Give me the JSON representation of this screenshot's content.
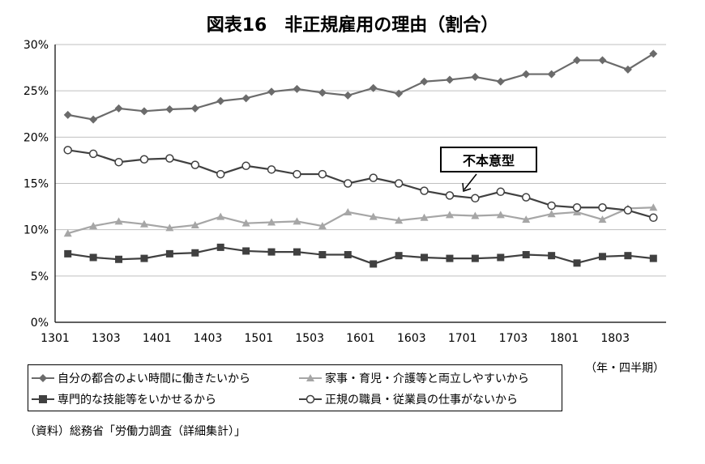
{
  "chart_data": {
    "type": "line",
    "title": "図表16　非正規雇用の理由（割合）",
    "x_labels": [
      "1301",
      "",
      "1303",
      "",
      "1401",
      "",
      "1403",
      "",
      "1501",
      "",
      "1503",
      "",
      "1601",
      "",
      "1603",
      "",
      "1701",
      "",
      "1703",
      "",
      "1801",
      "",
      "1803",
      ""
    ],
    "x_tick_labels": [
      "1301",
      "1303",
      "1401",
      "1403",
      "1501",
      "1503",
      "1601",
      "1603",
      "1701",
      "1703",
      "1801",
      "1803"
    ],
    "unit_note": "（年・四半期）",
    "ylim": [
      0,
      30
    ],
    "y_ticks": [
      "0%",
      "5%",
      "10%",
      "15%",
      "20%",
      "25%",
      "30%"
    ],
    "grid": true,
    "series": [
      {
        "name": "自分の都合のよい時間に働きたいから",
        "color": "#6b6b6b",
        "marker": "diamond",
        "values": [
          22.4,
          21.9,
          23.1,
          22.8,
          23.0,
          23.1,
          23.9,
          24.2,
          24.9,
          25.2,
          24.8,
          24.5,
          25.3,
          24.7,
          26.0,
          26.2,
          26.5,
          26.0,
          26.8,
          26.8,
          28.3,
          28.3,
          27.3,
          29.0
        ]
      },
      {
        "name": "家事・育児・介護等と両立しやすいから",
        "color": "#a6a6a6",
        "marker": "triangle",
        "values": [
          9.6,
          10.4,
          10.9,
          10.6,
          10.2,
          10.5,
          11.4,
          10.7,
          10.8,
          10.9,
          10.4,
          11.9,
          11.4,
          11.0,
          11.3,
          11.6,
          11.5,
          11.6,
          11.1,
          11.7,
          11.9,
          11.1,
          12.3,
          12.4
        ]
      },
      {
        "name": "専門的な技能等をいかせるから",
        "color": "#404040",
        "marker": "square",
        "values": [
          7.4,
          7.0,
          6.8,
          6.9,
          7.4,
          7.5,
          8.1,
          7.7,
          7.6,
          7.6,
          7.3,
          7.3,
          6.3,
          7.2,
          7.0,
          6.9,
          6.9,
          7.0,
          7.3,
          7.2,
          6.4,
          7.1,
          7.2,
          6.9
        ]
      },
      {
        "name": "正規の職員・従業員の仕事がないから",
        "color": "#404040",
        "marker": "circle",
        "values": [
          18.6,
          18.2,
          17.3,
          17.6,
          17.7,
          17.0,
          16.0,
          16.9,
          16.5,
          16.0,
          16.0,
          15.0,
          15.6,
          15.0,
          14.2,
          13.7,
          13.4,
          14.1,
          13.5,
          12.6,
          12.4,
          12.4,
          12.1,
          11.3
        ]
      }
    ],
    "annotation": "不本意型",
    "legend_position": "bottom"
  },
  "source": "（資料）総務省「労働力調査（詳細集計）」"
}
